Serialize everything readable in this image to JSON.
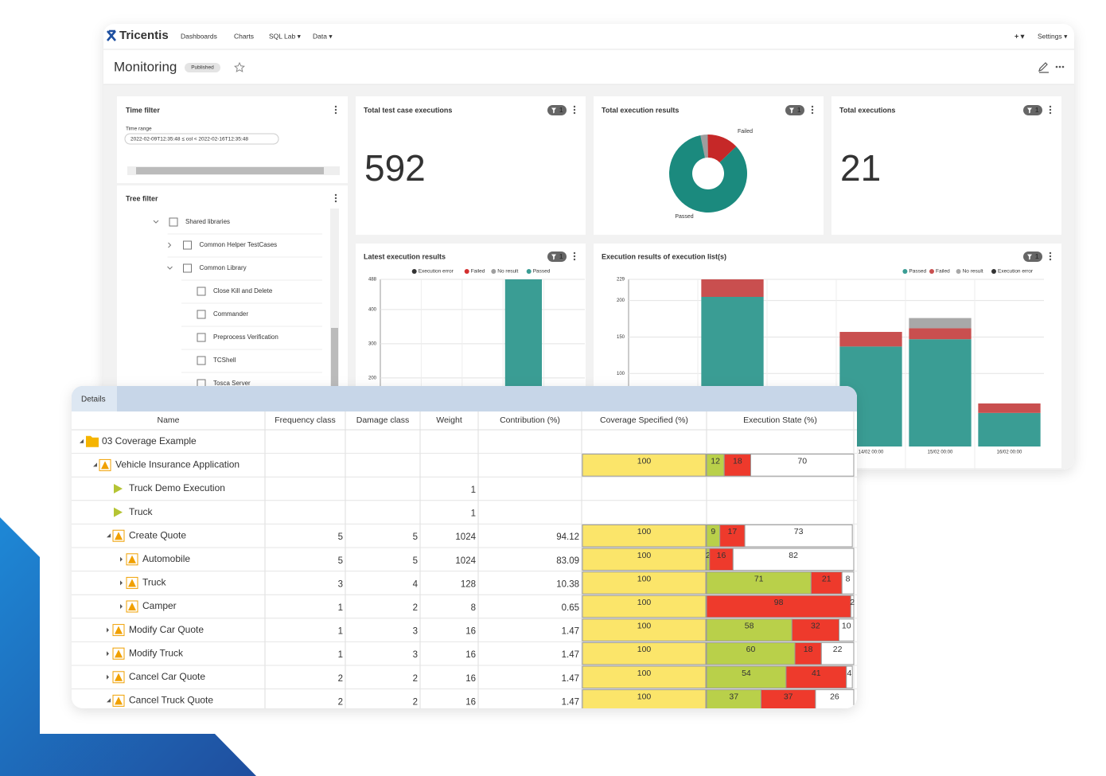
{
  "nav": {
    "logo": "Tricentis",
    "links": [
      "Dashboards",
      "Charts",
      "SQL Lab ▾",
      "Data ▾"
    ],
    "add": "+ ▾",
    "settings": "Settings ▾"
  },
  "header": {
    "title": "Monitoring",
    "status": "Published"
  },
  "time_filter": {
    "title": "Time filter",
    "label": "Time range",
    "value": "2022-02-09T12:35:48 ≤ col < 2022-02-16T12:35:48"
  },
  "tree_filter": {
    "title": "Tree filter",
    "items": [
      "Shared libraries",
      "Common Helper TestCases",
      "Common Library",
      "Close Kill and Delete",
      "Commander",
      "Preprocess Verification",
      "TCShell",
      "Tosca Server"
    ]
  },
  "metrics": [
    {
      "title": "Total test case executions",
      "value": 592,
      "filter_count": 1
    },
    {
      "title": "Total executions",
      "value": 21,
      "filter_count": 1
    }
  ],
  "chart_data": [
    {
      "type": "pie",
      "title": "Total execution results",
      "filter_count": 1,
      "donut": true,
      "labels": [
        null,
        "Failed",
        "Passed"
      ],
      "values": [
        3,
        13,
        84
      ],
      "colors": [
        "#9e9e9e",
        "#c62828",
        "#1b8a7e"
      ]
    },
    {
      "type": "bar",
      "title": "Latest execution results",
      "filter_count": 1,
      "stacked": true,
      "legend": "top",
      "categories": [
        null,
        null,
        null,
        null,
        null
      ],
      "ylim": [
        0,
        488
      ],
      "yticks": [
        200,
        300,
        400,
        488
      ],
      "grid": true,
      "series": [
        {
          "name": "Execution error",
          "color": "#333333",
          "values": [
            null,
            null,
            null,
            null,
            null
          ]
        },
        {
          "name": "Failed",
          "color": "#d32f2f",
          "values": [
            null,
            null,
            null,
            null,
            null
          ]
        },
        {
          "name": "No result",
          "color": "#9e9e9e",
          "values": [
            null,
            null,
            null,
            null,
            null
          ]
        },
        {
          "name": "Passed",
          "color": "#3a9d94",
          "values": [
            null,
            null,
            null,
            488,
            null
          ]
        }
      ]
    },
    {
      "type": "bar",
      "title": "Execution results of execution list(s)",
      "filter_count": 1,
      "stacked": true,
      "legend": "top right",
      "categories": [
        null,
        null,
        null,
        "14/02 00:00",
        "15/02 00:00",
        "16/02 00:00"
      ],
      "ylim": [
        0,
        229
      ],
      "yticks": [
        100,
        150,
        200,
        229
      ],
      "grid": true,
      "series": [
        {
          "name": "Passed",
          "color": "#3a9d94",
          "values": [
            null,
            205,
            null,
            137,
            147,
            46
          ]
        },
        {
          "name": "Failed",
          "color": "#c94f4f",
          "values": [
            null,
            24,
            null,
            20,
            15,
            13
          ]
        },
        {
          "name": "No result",
          "color": "#a8a8a8",
          "values": [
            null,
            null,
            null,
            null,
            14,
            null
          ]
        },
        {
          "name": "Execution error",
          "color": "#333333",
          "values": [
            null,
            null,
            null,
            null,
            null,
            null
          ]
        }
      ]
    }
  ],
  "table": {
    "tab": "Details",
    "columns": [
      "Name",
      "Frequency class",
      "Damage class",
      "Weight",
      "Contribution (%)",
      "Coverage Specified (%)",
      "Execution State (%)"
    ],
    "rows": [
      [
        "03 Coverage Example",
        null,
        null,
        null,
        null,
        null,
        null
      ],
      [
        "Vehicle Insurance Application",
        null,
        null,
        null,
        null,
        100,
        [
          12,
          18,
          70
        ]
      ],
      [
        "Truck Demo Execution",
        null,
        null,
        1,
        null,
        null,
        null
      ],
      [
        "Truck",
        null,
        null,
        1,
        null,
        null,
        null
      ],
      [
        "Create Quote",
        5,
        5,
        1024,
        94.12,
        100,
        [
          9,
          17,
          73
        ]
      ],
      [
        "Automobile",
        5,
        5,
        1024,
        83.09,
        100,
        [
          2,
          16,
          82
        ]
      ],
      [
        "Truck",
        3,
        4,
        128,
        10.38,
        100,
        [
          71,
          21,
          8
        ]
      ],
      [
        "Camper",
        1,
        2,
        8,
        0.65,
        100,
        [
          null,
          98,
          2
        ]
      ],
      [
        "Modify Car Quote",
        1,
        3,
        16,
        1.47,
        100,
        [
          58,
          32,
          10
        ]
      ],
      [
        "Modify Truck",
        1,
        3,
        16,
        1.47,
        100,
        [
          60,
          18,
          22
        ]
      ],
      [
        "Cancel Car Quote",
        2,
        2,
        16,
        1.47,
        100,
        [
          54,
          41,
          4
        ]
      ],
      [
        "Cancel Truck Quote",
        2,
        2,
        16,
        1.47,
        100,
        [
          37,
          37,
          26
        ]
      ]
    ]
  }
}
